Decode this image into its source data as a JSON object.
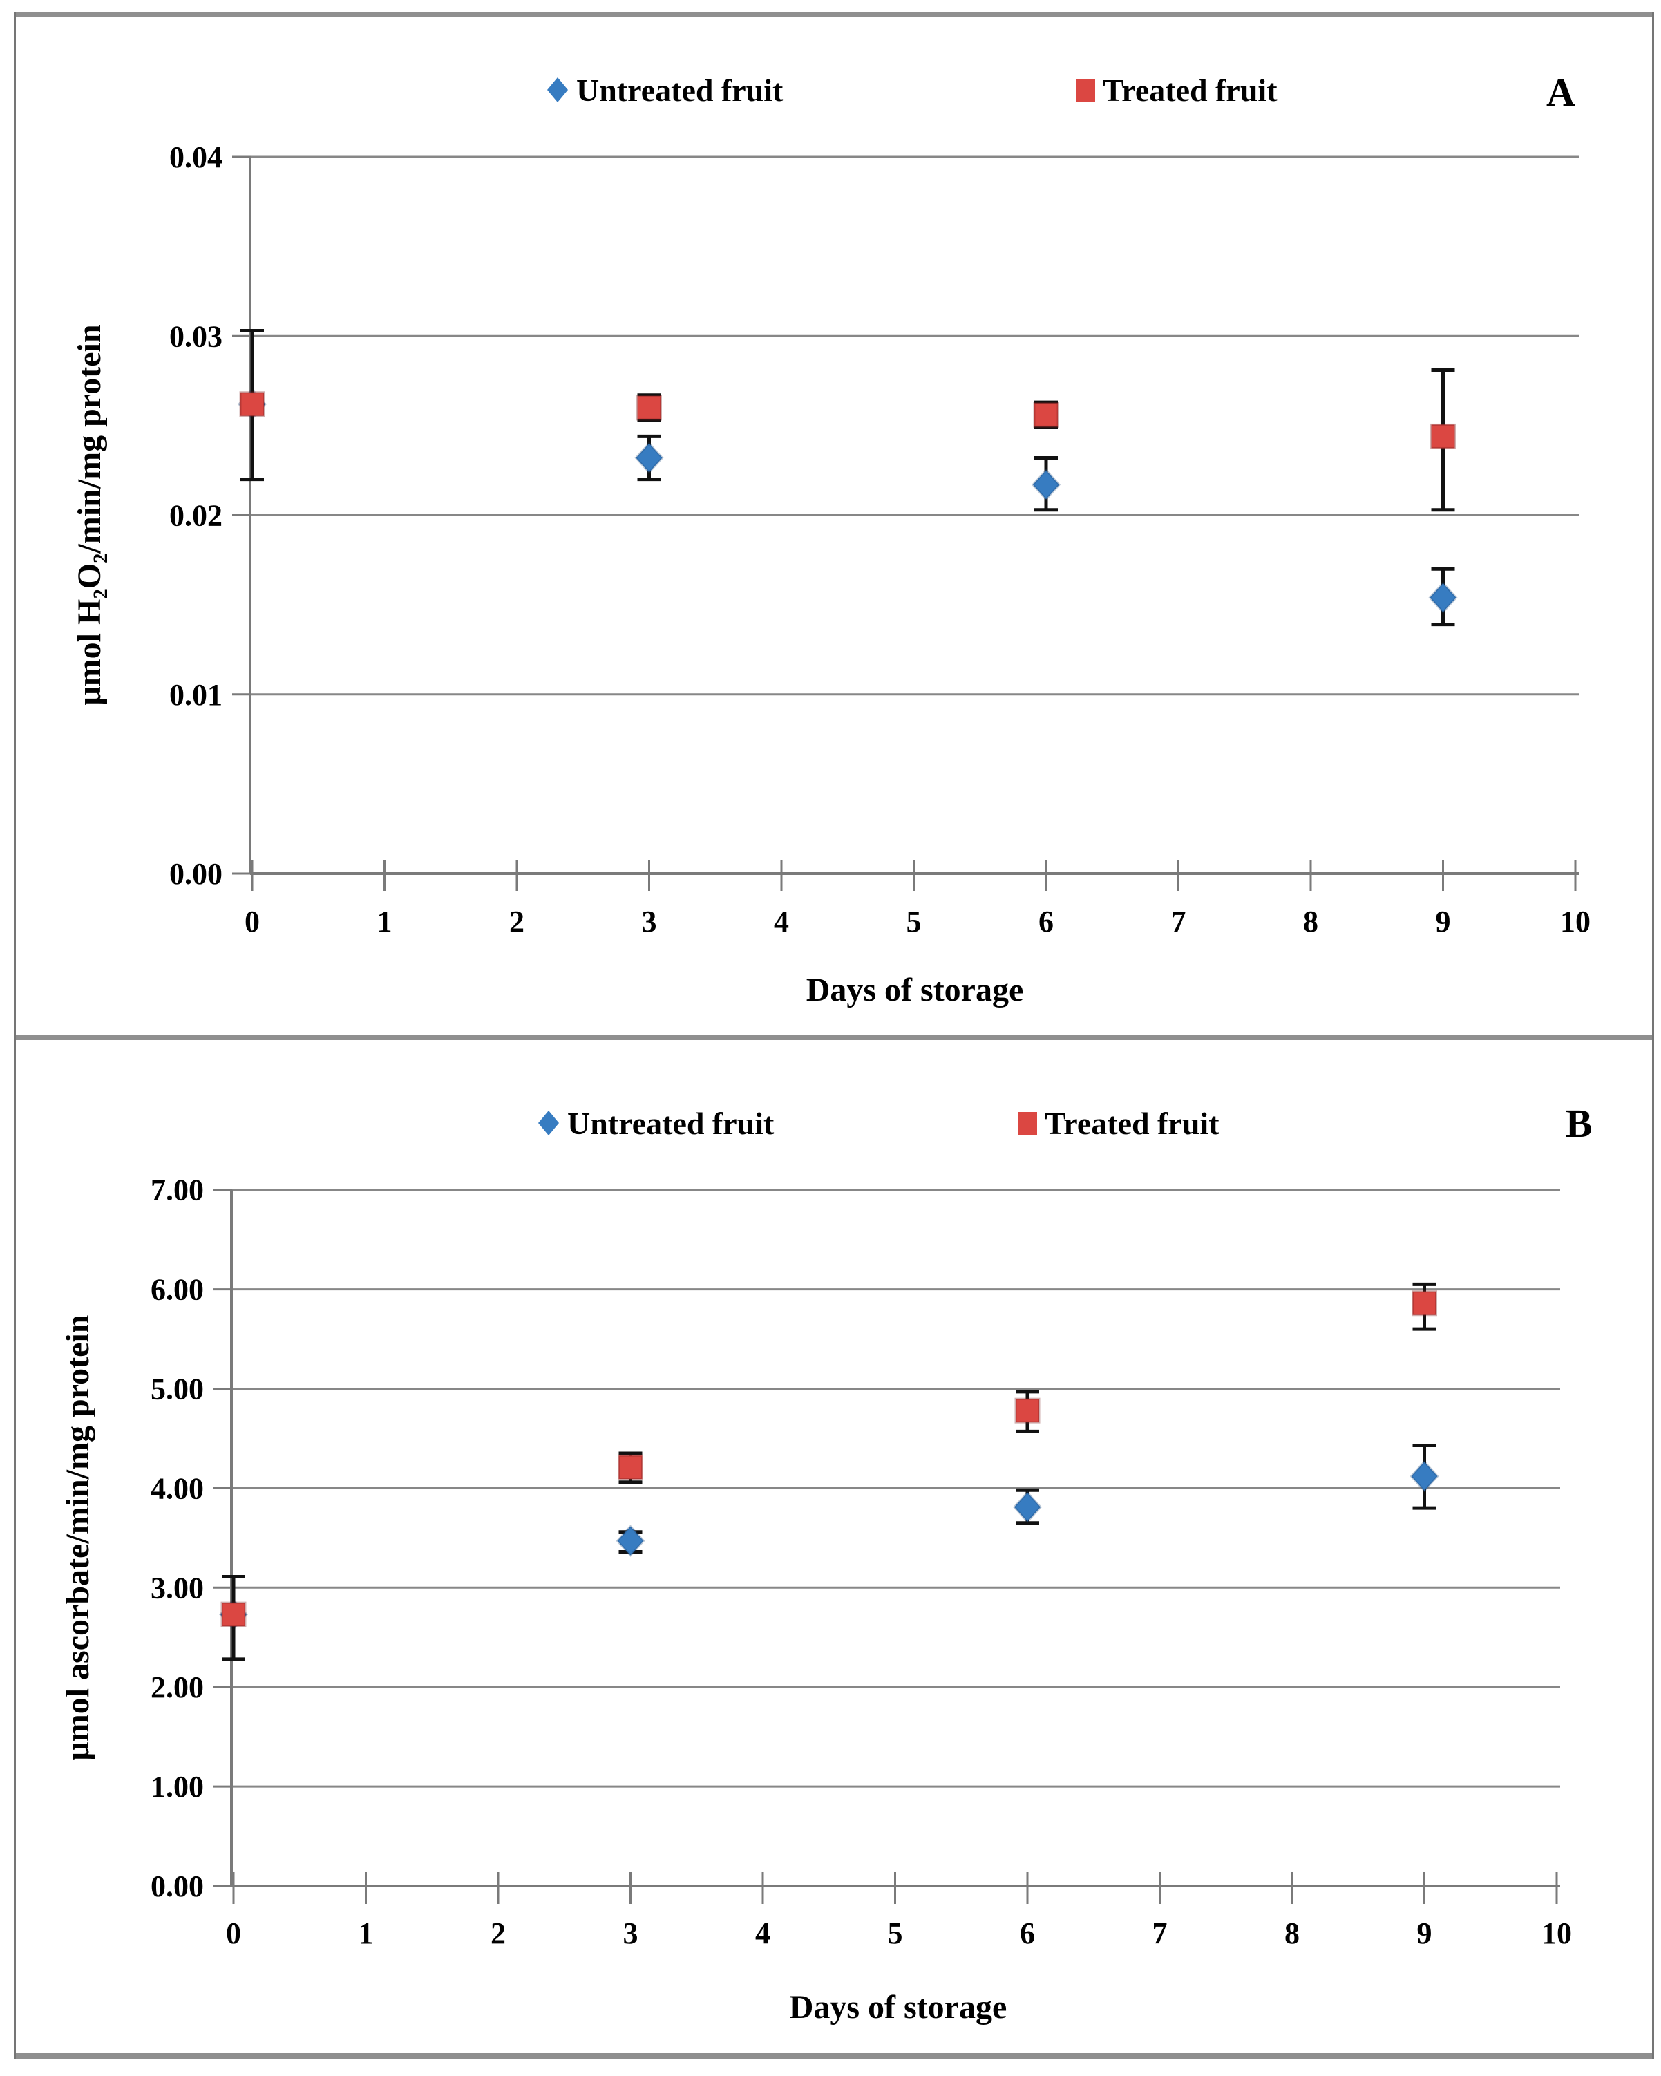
{
  "chart_data": [
    {
      "id": "panel-A",
      "panel_label": "A",
      "type": "scatter",
      "xlabel": "Days of storage",
      "ylabel": "μmol H₂O₂/min/mg  protein",
      "xlim": [
        0,
        10
      ],
      "ylim": [
        0,
        0.04
      ],
      "xticks": [
        "0",
        "1",
        "2",
        "3",
        "4",
        "5",
        "6",
        "7",
        "8",
        "9",
        "10"
      ],
      "yticks": [
        "0.00",
        "0.01",
        "0.02",
        "0.03",
        "0.04"
      ],
      "grid": "horizontal",
      "legend_position": "top",
      "x": [
        0,
        3,
        6,
        9
      ],
      "series": [
        {
          "name": "Untreated fruit",
          "marker": "diamond",
          "color": "#377CC1",
          "values": [
            0.0262,
            0.0232,
            0.0217,
            0.0154
          ],
          "err_up": [
            0,
            0.0012,
            0.0015,
            0.0016
          ],
          "err_down": [
            0,
            0.0012,
            0.0014,
            0.0015
          ]
        },
        {
          "name": "Treated fruit",
          "marker": "square",
          "color": "#DB4742",
          "values": [
            0.0262,
            0.026,
            0.0256,
            0.0244
          ],
          "err_up": [
            0.0041,
            0.0007,
            0.0007,
            0.0037
          ],
          "err_down": [
            0.0042,
            0.0007,
            0.0007,
            0.0041
          ]
        }
      ]
    },
    {
      "id": "panel-B",
      "panel_label": "B",
      "type": "scatter",
      "xlabel": "Days of storage",
      "ylabel": "μmol  ascorbate/min/mg  protein",
      "xlim": [
        0,
        10
      ],
      "ylim": [
        0,
        7
      ],
      "xticks": [
        "0",
        "1",
        "2",
        "3",
        "4",
        "5",
        "6",
        "7",
        "8",
        "9",
        "10"
      ],
      "yticks": [
        "0.00",
        "1.00",
        "2.00",
        "3.00",
        "4.00",
        "5.00",
        "6.00",
        "7.00"
      ],
      "grid": "horizontal",
      "legend_position": "top",
      "x": [
        0,
        3,
        6,
        9
      ],
      "series": [
        {
          "name": "Untreated fruit",
          "marker": "diamond",
          "color": "#377CC1",
          "values": [
            2.73,
            3.47,
            3.81,
            4.12
          ],
          "err_up": [
            0,
            0.09,
            0.17,
            0.31
          ],
          "err_down": [
            0,
            0.11,
            0.16,
            0.32
          ]
        },
        {
          "name": "Treated fruit",
          "marker": "square",
          "color": "#DB4742",
          "values": [
            2.73,
            4.21,
            4.78,
            5.86
          ],
          "err_up": [
            0.38,
            0.14,
            0.19,
            0.19
          ],
          "err_down": [
            0.45,
            0.15,
            0.21,
            0.26
          ]
        }
      ]
    }
  ],
  "style": {
    "grid_color": "#878787",
    "axis_color": "#7a7a7a",
    "error_bar_color": "#111111"
  }
}
